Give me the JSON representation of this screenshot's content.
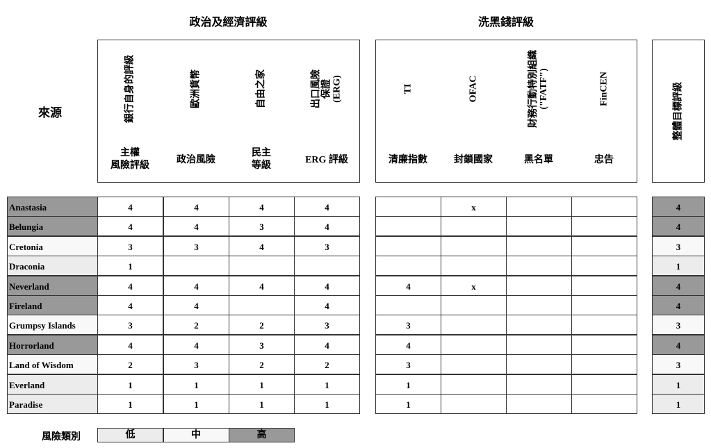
{
  "section_titles": {
    "political": "政治及經濟評級",
    "aml": "洗黑錢評級"
  },
  "source_label": "來源",
  "columns": [
    {
      "vertical": "銀行自身的評級",
      "sub": "主權\n風險評級"
    },
    {
      "vertical": "歐洲貨幣",
      "sub": "政治風險"
    },
    {
      "vertical": "自由之家",
      "sub": "民主\n等級"
    },
    {
      "vertical": "出口風險\n保證\n(ERG)",
      "sub": "ERG 評級"
    },
    {
      "vertical": "TI",
      "sub": "清廉指數"
    },
    {
      "vertical": "OFAC",
      "sub": "封鎖國家"
    },
    {
      "vertical": "財務行動特別組織\n(\"FATF\")",
      "sub": "黑名單"
    },
    {
      "vertical": "FinCEN",
      "sub": "忠告"
    }
  ],
  "overall_label": "整體目標評級",
  "risk_colors": {
    "low": "#ececec",
    "mid": "#f8f8f8",
    "high": "#999999"
  },
  "rows": [
    {
      "name": "Anastasia",
      "values": [
        "4",
        "4",
        "4",
        "4",
        "",
        "x",
        "",
        ""
      ],
      "overall": "4",
      "risk": "high"
    },
    {
      "name": "Belungia",
      "values": [
        "4",
        "4",
        "3",
        "4",
        "",
        "",
        "",
        ""
      ],
      "overall": "4",
      "risk": "high"
    },
    {
      "name": "Cretonia",
      "values": [
        "3",
        "3",
        "4",
        "3",
        "",
        "",
        "",
        ""
      ],
      "overall": "3",
      "risk": "mid"
    },
    {
      "name": "Draconia",
      "values": [
        "1",
        "",
        "",
        "",
        "",
        "",
        "",
        ""
      ],
      "overall": "1",
      "risk": "low"
    },
    {
      "name": "Neverland",
      "values": [
        "4",
        "4",
        "4",
        "4",
        "4",
        "x",
        "",
        ""
      ],
      "overall": "4",
      "risk": "high"
    },
    {
      "name": "Fireland",
      "values": [
        "4",
        "4",
        "",
        "4",
        "",
        "",
        "",
        ""
      ],
      "overall": "4",
      "risk": "high"
    },
    {
      "name": "Grumpsy Islands",
      "values": [
        "3",
        "2",
        "2",
        "3",
        "3",
        "",
        "",
        ""
      ],
      "overall": "3",
      "risk": "mid"
    },
    {
      "name": "Horrorland",
      "values": [
        "4",
        "4",
        "3",
        "4",
        "4",
        "",
        "",
        ""
      ],
      "overall": "4",
      "risk": "high"
    },
    {
      "name": "Land of Wisdom",
      "values": [
        "2",
        "3",
        "2",
        "2",
        "3",
        "",
        "",
        ""
      ],
      "overall": "3",
      "risk": "mid"
    },
    {
      "name": "Everland",
      "values": [
        "1",
        "1",
        "1",
        "1",
        "1",
        "",
        "",
        ""
      ],
      "overall": "1",
      "risk": "low"
    },
    {
      "name": "Paradise",
      "values": [
        "1",
        "1",
        "1",
        "1",
        "1",
        "",
        "",
        ""
      ],
      "overall": "1",
      "risk": "low"
    }
  ],
  "legend": {
    "label": "風險類別",
    "items": [
      {
        "text": "低",
        "risk": "low"
      },
      {
        "text": "中",
        "risk": "mid"
      },
      {
        "text": "高",
        "risk": "high"
      }
    ]
  }
}
